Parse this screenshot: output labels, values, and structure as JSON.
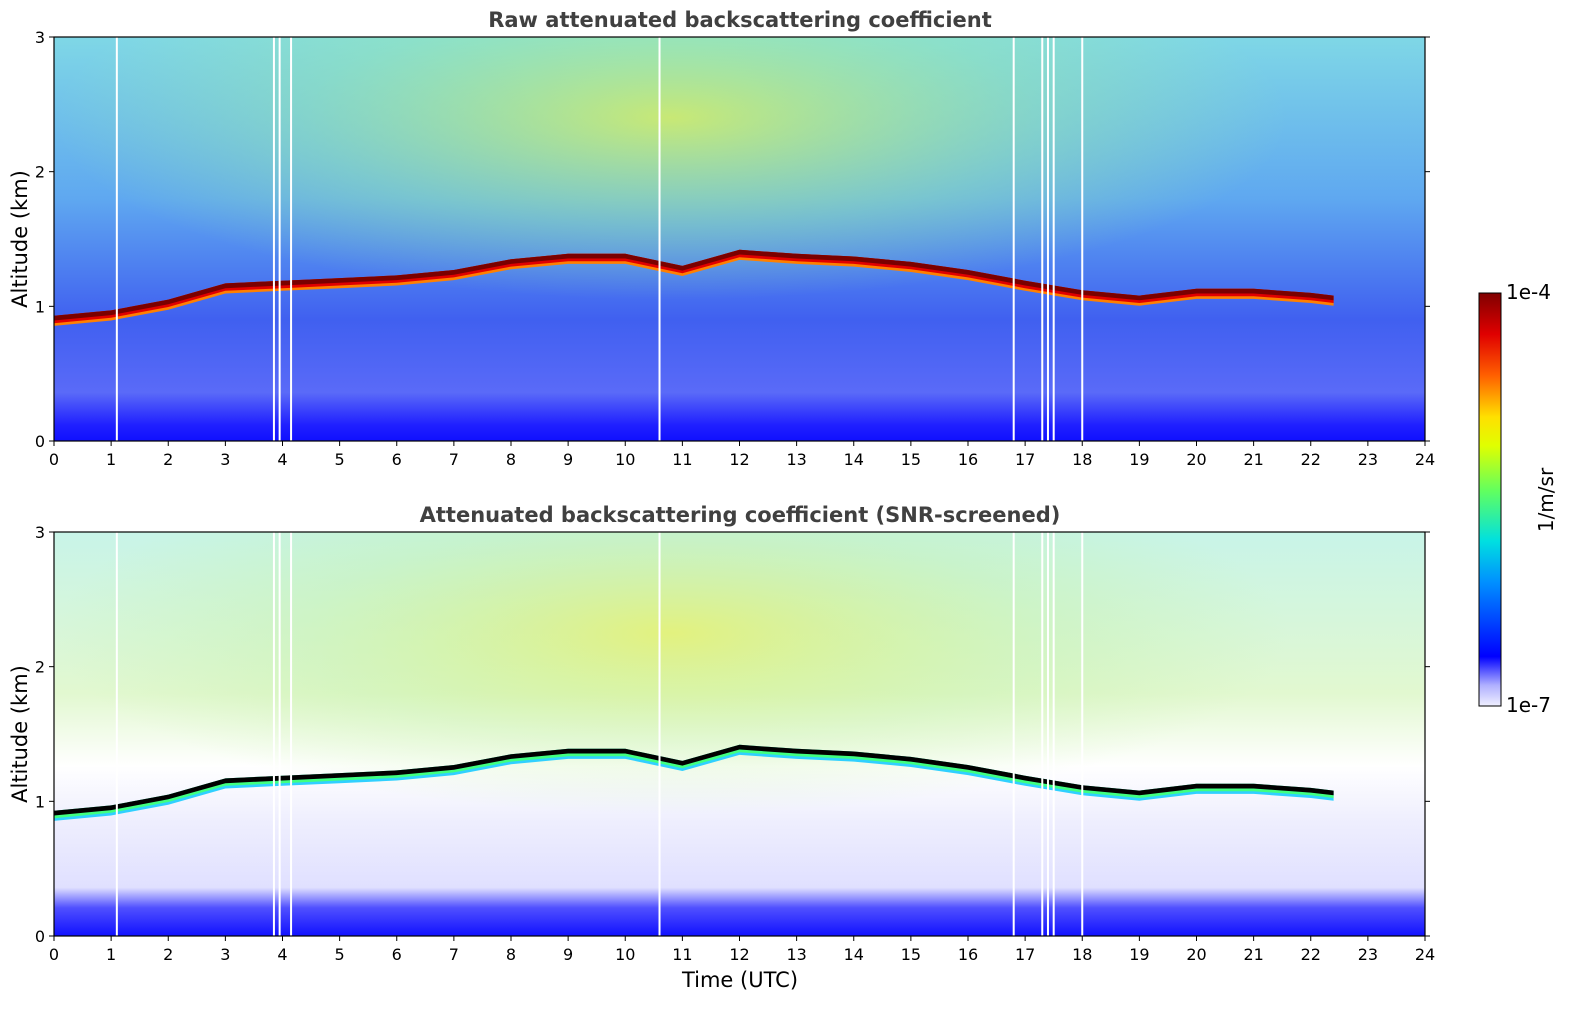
{
  "chart_data": [
    {
      "type": "heatmap",
      "title": "Raw attenuated backscattering coefficient",
      "ylabel": "Altitude (km)",
      "xlabel": "",
      "xlim": [
        0,
        24
      ],
      "ylim": [
        0,
        3
      ],
      "xticks": [
        "0",
        "1",
        "2",
        "3",
        "4",
        "5",
        "6",
        "7",
        "8",
        "9",
        "10",
        "11",
        "12",
        "13",
        "14",
        "15",
        "16",
        "17",
        "18",
        "19",
        "20",
        "21",
        "22",
        "23",
        "24"
      ],
      "yticks": [
        "0",
        "1",
        "2",
        "3"
      ],
      "layer_top_km": {
        "x": [
          0,
          1,
          2,
          3,
          4,
          5,
          6,
          7,
          8,
          9,
          10,
          11,
          12,
          13,
          14,
          15,
          16,
          17,
          18,
          19,
          20,
          21,
          22,
          22.4
        ],
        "y": [
          0.93,
          0.97,
          1.05,
          1.17,
          1.19,
          1.21,
          1.23,
          1.27,
          1.35,
          1.39,
          1.39,
          1.3,
          1.42,
          1.39,
          1.37,
          1.33,
          1.27,
          1.19,
          1.12,
          1.08,
          1.13,
          1.13,
          1.1,
          1.08
        ]
      },
      "gaps_utc": [
        1.1,
        3.85,
        3.95,
        4.15,
        10.6,
        16.8,
        17.3,
        17.4,
        17.5,
        18.0
      ]
    },
    {
      "type": "heatmap",
      "title": "Attenuated backscattering coefficient (SNR-screened)",
      "ylabel": "Altitude (km)",
      "xlabel": "Time (UTC)",
      "xlim": [
        0,
        24
      ],
      "ylim": [
        0,
        3
      ],
      "xticks": [
        "0",
        "1",
        "2",
        "3",
        "4",
        "5",
        "6",
        "7",
        "8",
        "9",
        "10",
        "11",
        "12",
        "13",
        "14",
        "15",
        "16",
        "17",
        "18",
        "19",
        "20",
        "21",
        "22",
        "23",
        "24"
      ],
      "yticks": [
        "0",
        "1",
        "2",
        "3"
      ],
      "layer_top_km": {
        "x": [
          0,
          1,
          2,
          3,
          4,
          5,
          6,
          7,
          8,
          9,
          10,
          11,
          12,
          13,
          14,
          15,
          16,
          17,
          18,
          19,
          20,
          21,
          22,
          22.4
        ],
        "y": [
          0.93,
          0.97,
          1.05,
          1.17,
          1.19,
          1.21,
          1.23,
          1.27,
          1.35,
          1.39,
          1.39,
          1.3,
          1.42,
          1.39,
          1.37,
          1.33,
          1.27,
          1.19,
          1.12,
          1.08,
          1.13,
          1.13,
          1.1,
          1.08
        ]
      },
      "gaps_utc": [
        1.1,
        3.85,
        3.95,
        4.15,
        10.6,
        16.8,
        17.3,
        17.4,
        17.5,
        18.0
      ]
    }
  ],
  "colorbar": {
    "label": "1/m/sr",
    "max_label": "1e-4",
    "min_label": "1e-7",
    "colors": [
      "#e8e8ff",
      "#0000ff",
      "#00c8ff",
      "#40ff80",
      "#ffff00",
      "#ff8000",
      "#e00000",
      "#800000"
    ]
  }
}
